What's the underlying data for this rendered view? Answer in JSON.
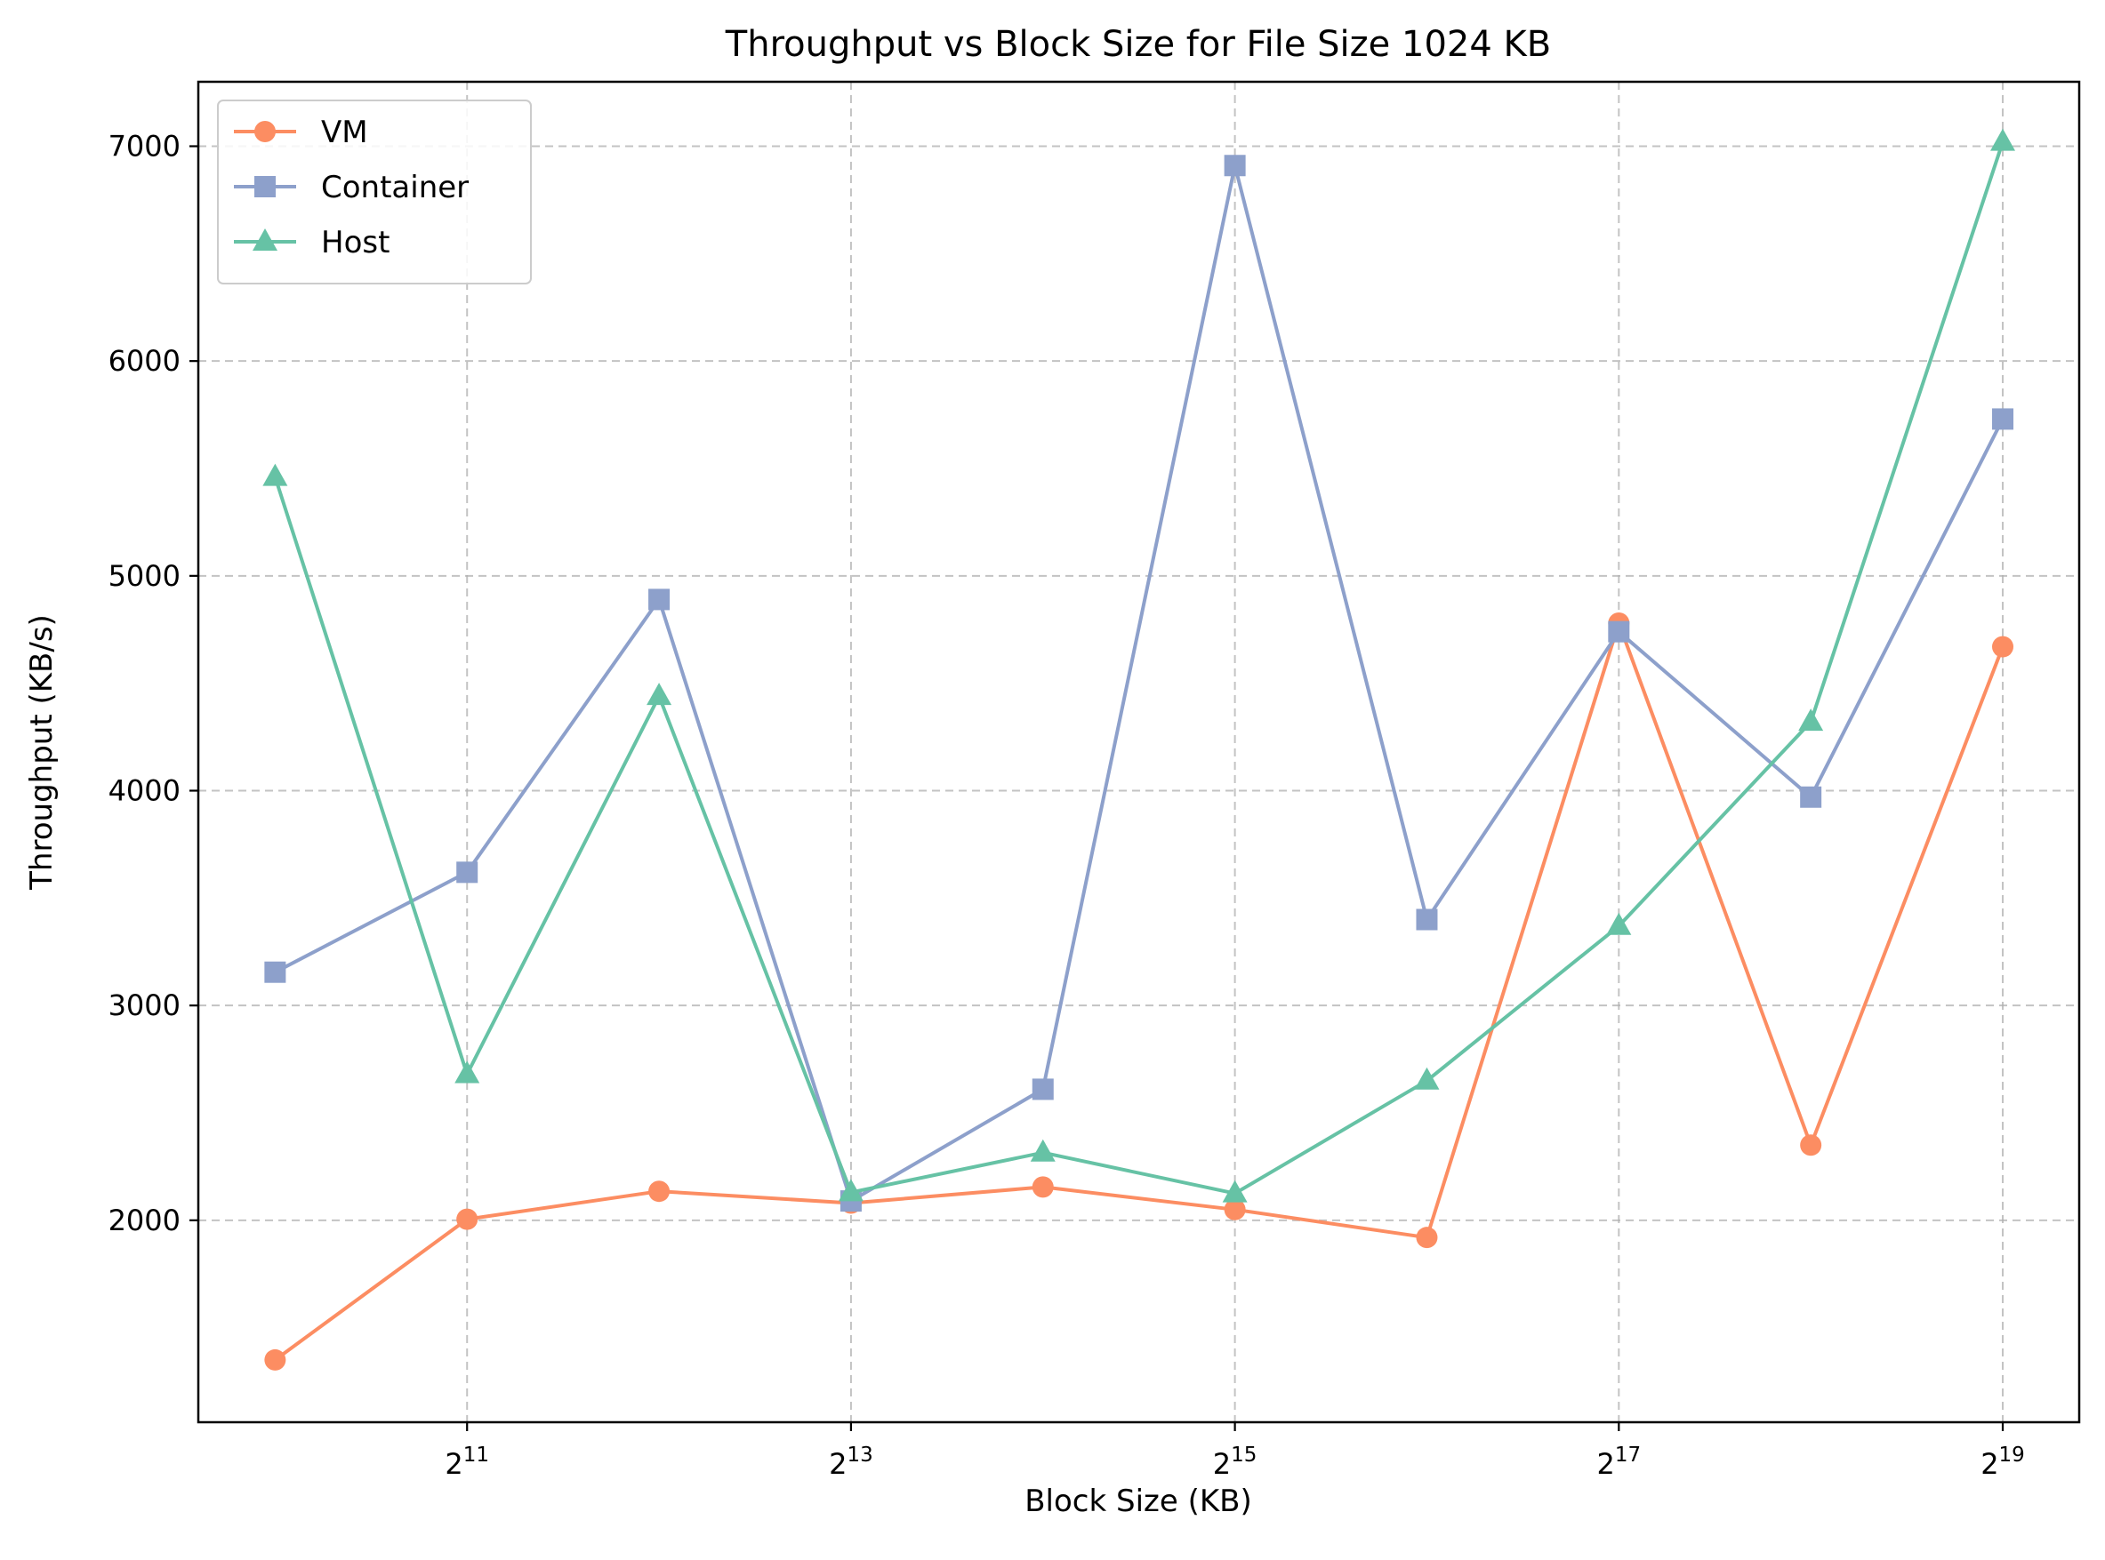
{
  "chart_data": {
    "type": "line",
    "title": "Throughput vs Block Size for File Size 1024 KB",
    "xlabel": "Block Size (KB)",
    "ylabel": "Throughput (KB/s)",
    "x_scale": "log2",
    "x": [
      1024,
      2048,
      4096,
      8192,
      16384,
      32768,
      65536,
      131072,
      262144,
      524288
    ],
    "x_ticks": [
      2048,
      8192,
      32768,
      131072,
      524288
    ],
    "x_tick_labels": [
      {
        "base": "2",
        "exp": "11"
      },
      {
        "base": "2",
        "exp": "13"
      },
      {
        "base": "2",
        "exp": "15"
      },
      {
        "base": "2",
        "exp": "17"
      },
      {
        "base": "2",
        "exp": "19"
      }
    ],
    "y_ticks": [
      2000,
      3000,
      4000,
      5000,
      6000,
      7000
    ],
    "xlim": [
      776,
      691000
    ],
    "ylim": [
      1060,
      7300
    ],
    "grid": true,
    "legend_position": "top-left",
    "series": [
      {
        "name": "VM",
        "color": "#fc8d62",
        "marker": "circle",
        "values": [
          1350,
          2005,
          2135,
          2080,
          2155,
          2050,
          1920,
          4780,
          2350,
          4670
        ]
      },
      {
        "name": "Container",
        "color": "#8da0cb",
        "marker": "square",
        "values": [
          3155,
          3620,
          4890,
          2090,
          2610,
          6910,
          3400,
          4740,
          3970,
          5730
        ]
      },
      {
        "name": "Host",
        "color": "#66c2a5",
        "marker": "triangle",
        "values": [
          5460,
          2680,
          4440,
          2130,
          2315,
          2125,
          2650,
          3370,
          4320,
          7020
        ]
      }
    ]
  }
}
